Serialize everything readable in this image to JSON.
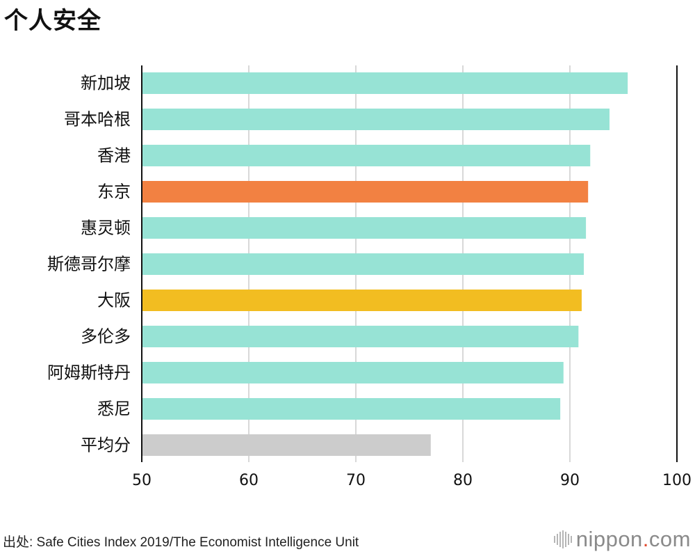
{
  "page": {
    "title": "个人安全",
    "source": "出处: Safe Cities Index 2019/The Economist Intelligence Unit",
    "logo": {
      "name": "nippon",
      "dot": ".",
      "tld": "com"
    }
  },
  "colors": {
    "default_bar": "#97e3d5",
    "tokyo": "#f28142",
    "osaka": "#f2bd21",
    "average": "#cccccc",
    "grid": "#cccccc",
    "axis": "#111111"
  },
  "chart_data": {
    "type": "bar",
    "orientation": "horizontal",
    "title": "个人安全",
    "xlabel": "",
    "ylabel": "",
    "xlim": [
      50,
      100
    ],
    "xticks": [
      50,
      60,
      70,
      80,
      90,
      100
    ],
    "grid": true,
    "categories": [
      "新加坡",
      "哥本哈根",
      "香港",
      "东京",
      "惠灵顿",
      "斯德哥尔摩",
      "大阪",
      "多伦多",
      "阿姆斯特丹",
      "悉尼",
      "平均分"
    ],
    "values": [
      95.4,
      93.7,
      91.9,
      91.7,
      91.5,
      91.3,
      91.1,
      90.8,
      89.4,
      89.1,
      77.0
    ],
    "bar_colors": [
      "#97e3d5",
      "#97e3d5",
      "#97e3d5",
      "#f28142",
      "#97e3d5",
      "#97e3d5",
      "#f2bd21",
      "#97e3d5",
      "#97e3d5",
      "#97e3d5",
      "#cccccc"
    ]
  }
}
